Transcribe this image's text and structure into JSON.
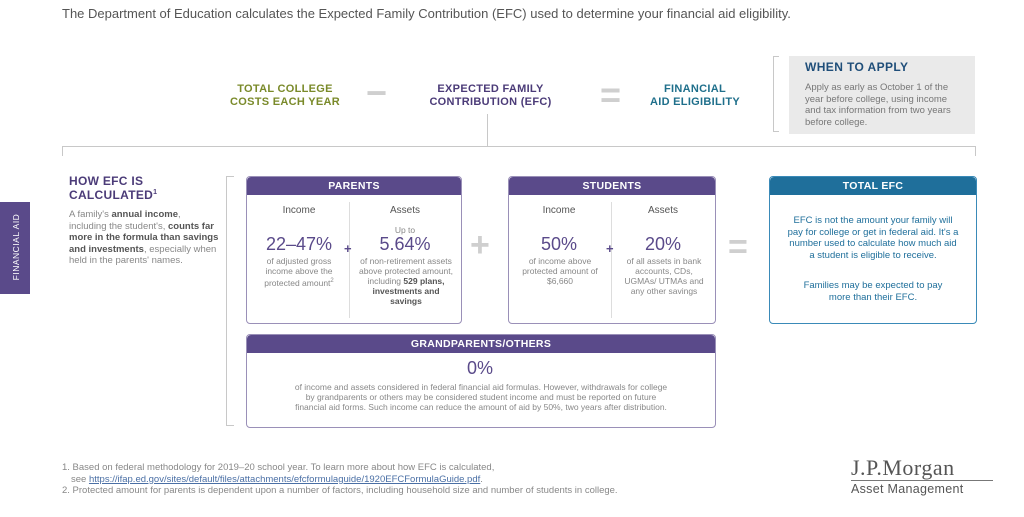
{
  "intro": "The Department of Education calculates the Expected Family Contribution (EFC) used to determine your financial aid eligibility.",
  "equation": {
    "total_costs": [
      "TOTAL COLLEGE",
      "COSTS EACH YEAR"
    ],
    "minus": "−",
    "efc": [
      "EXPECTED FAMILY",
      "CONTRIBUTION (EFC)"
    ],
    "equals": "=",
    "aid": [
      "FINANCIAL",
      "AID ELIGIBILITY"
    ]
  },
  "when_to_apply": {
    "title": "WHEN TO APPLY",
    "body": "Apply as early as October 1 of the year before college, using income and tax information from two years before college."
  },
  "side_tab": "FINANCIAL AID",
  "how": {
    "title_lines": [
      "HOW EFC IS",
      "CALCULATED"
    ],
    "title_sup": "1",
    "body_pre": "A family's ",
    "body_b1": "annual income",
    "body_mid": ", including the student's, ",
    "body_b2": "counts far more in the formula than savings and investments",
    "body_post": ", especially when held in the parents' names."
  },
  "parents": {
    "header": "PARENTS",
    "income": {
      "label": "Income",
      "value": "22–47%",
      "desc": "of adjusted gross income above the protected amount",
      "sup": "2"
    },
    "plus": "+",
    "assets": {
      "label": "Assets",
      "pre": "Up to",
      "value": "5.64%",
      "desc": "of non-retirement assets above protected amount, including ",
      "desc_bold": "529 plans, investments and savings"
    }
  },
  "big_plus": "+",
  "students": {
    "header": "STUDENTS",
    "income": {
      "label": "Income",
      "value": "50%",
      "desc": "of income above protected amount of $6,660"
    },
    "plus": "+",
    "assets": {
      "label": "Assets",
      "value": "20%",
      "desc": "of all assets in bank accounts, CDs, UGMAs/ UTMAs and any other savings"
    }
  },
  "big_equals": "=",
  "total_efc": {
    "header": "TOTAL EFC",
    "p1": "EFC is not the amount your family will pay for college or get in federal aid. It's a number used to calculate how much aid a student is eligible to receive.",
    "p2": "Families may be expected to pay more than their EFC."
  },
  "grandparents": {
    "header": "GRANDPARENTS/OTHERS",
    "value": "0%",
    "desc": "of income and assets considered in federal financial aid formulas. However, withdrawals for college by grandparents or others may be considered student income and must be reported on future financial aid forms. Such income can reduce the amount of aid by 50%, two years after distribution."
  },
  "footnotes": {
    "f1a": "1. Based on federal methodology for 2019–20 school year. To learn more about how EFC is calculated,",
    "f1b_pre": "see ",
    "f1b_link": "https://ifap.ed.gov/sites/default/files/attachments/efcformulaguide/1920EFCFormulaGuide.pdf",
    "f1b_post": ".",
    "f2": "2. Protected amount for parents is dependent upon a number of factors, including household size and number of students in college."
  },
  "logo": {
    "line1": "J.P.Morgan",
    "line2": "Asset Management"
  }
}
